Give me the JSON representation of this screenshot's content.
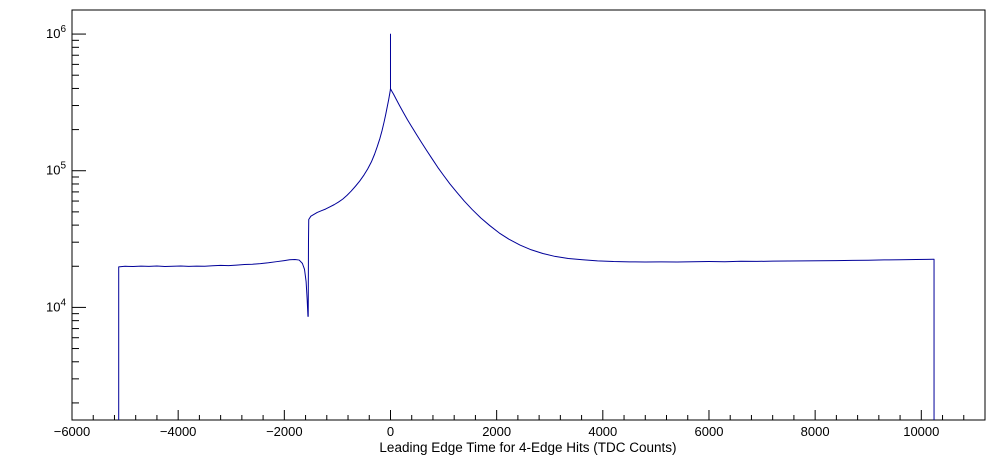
{
  "chart_data": {
    "type": "line",
    "title": "",
    "xlabel": "Leading Edge Time for 4-Edge Hits (TDC Counts)",
    "ylabel": "",
    "y_scale": "log",
    "grid": false,
    "legend": "none",
    "xlim": [
      -6000,
      11200
    ],
    "ylim": [
      1500,
      1500000
    ],
    "x_minor_step": 400,
    "line_color": "#000099",
    "frame_color": "#000000",
    "background_color": "#ffffff",
    "x_ticks": [
      {
        "value": -6000,
        "label": "−6000"
      },
      {
        "value": -4000,
        "label": "−4000"
      },
      {
        "value": -2000,
        "label": "−2000"
      },
      {
        "value": 0,
        "label": "0"
      },
      {
        "value": 2000,
        "label": "2000"
      },
      {
        "value": 4000,
        "label": "4000"
      },
      {
        "value": 6000,
        "label": "6000"
      },
      {
        "value": 8000,
        "label": "8000"
      },
      {
        "value": 10000,
        "label": "10000"
      }
    ],
    "y_ticks": [
      {
        "value": 10000,
        "label_base": "10",
        "label_exp": "4"
      },
      {
        "value": 100000,
        "label_base": "10",
        "label_exp": "5"
      },
      {
        "value": 1000000,
        "label_base": "10",
        "label_exp": "6"
      }
    ],
    "series": [
      {
        "name": "leading-edge-time-histogram",
        "points": [
          [
            -5120,
            1500
          ],
          [
            -5120,
            19800
          ],
          [
            -5000,
            20000
          ],
          [
            -4850,
            19900
          ],
          [
            -4700,
            20050
          ],
          [
            -4550,
            19950
          ],
          [
            -4400,
            20100
          ],
          [
            -4250,
            19900
          ],
          [
            -4100,
            20000
          ],
          [
            -3950,
            20100
          ],
          [
            -3800,
            19950
          ],
          [
            -3650,
            20050
          ],
          [
            -3500,
            20000
          ],
          [
            -3350,
            20150
          ],
          [
            -3200,
            20300
          ],
          [
            -3050,
            20200
          ],
          [
            -2900,
            20400
          ],
          [
            -2750,
            20600
          ],
          [
            -2600,
            20700
          ],
          [
            -2450,
            20900
          ],
          [
            -2300,
            21200
          ],
          [
            -2150,
            21600
          ],
          [
            -2000,
            22000
          ],
          [
            -1900,
            22300
          ],
          [
            -1800,
            22400
          ],
          [
            -1720,
            22200
          ],
          [
            -1660,
            21000
          ],
          [
            -1620,
            19000
          ],
          [
            -1590,
            15500
          ],
          [
            -1570,
            11500
          ],
          [
            -1555,
            8600
          ],
          [
            -1550,
            8600
          ],
          [
            -1545,
            30000
          ],
          [
            -1540,
            44000
          ],
          [
            -1500,
            46500
          ],
          [
            -1440,
            48000
          ],
          [
            -1380,
            49500
          ],
          [
            -1300,
            51000
          ],
          [
            -1220,
            52500
          ],
          [
            -1140,
            54500
          ],
          [
            -1060,
            56500
          ],
          [
            -980,
            59000
          ],
          [
            -900,
            62000
          ],
          [
            -820,
            66000
          ],
          [
            -740,
            71000
          ],
          [
            -660,
            77000
          ],
          [
            -580,
            84000
          ],
          [
            -500,
            93000
          ],
          [
            -430,
            103000
          ],
          [
            -360,
            116000
          ],
          [
            -300,
            132000
          ],
          [
            -250,
            150000
          ],
          [
            -200,
            172000
          ],
          [
            -160,
            196000
          ],
          [
            -120,
            228000
          ],
          [
            -90,
            258000
          ],
          [
            -60,
            295000
          ],
          [
            -35,
            330000
          ],
          [
            -15,
            365000
          ],
          [
            -5,
            385000
          ],
          [
            0,
            400000
          ],
          [
            0,
            1000000
          ],
          [
            0,
            398000
          ],
          [
            20,
            385000
          ],
          [
            60,
            362000
          ],
          [
            110,
            332000
          ],
          [
            170,
            300000
          ],
          [
            240,
            268000
          ],
          [
            320,
            236000
          ],
          [
            400,
            210000
          ],
          [
            490,
            184000
          ],
          [
            580,
            162000
          ],
          [
            680,
            141000
          ],
          [
            780,
            123000
          ],
          [
            890,
            106000
          ],
          [
            1000,
            92500
          ],
          [
            1120,
            80000
          ],
          [
            1250,
            69500
          ],
          [
            1390,
            60000
          ],
          [
            1540,
            52000
          ],
          [
            1700,
            45200
          ],
          [
            1870,
            39700
          ],
          [
            2050,
            35000
          ],
          [
            2240,
            31400
          ],
          [
            2440,
            28600
          ],
          [
            2650,
            26400
          ],
          [
            2870,
            24800
          ],
          [
            3100,
            23600
          ],
          [
            3350,
            22800
          ],
          [
            3620,
            22300
          ],
          [
            3900,
            21900
          ],
          [
            4200,
            21650
          ],
          [
            4500,
            21550
          ],
          [
            4800,
            21500
          ],
          [
            5100,
            21550
          ],
          [
            5400,
            21500
          ],
          [
            5700,
            21600
          ],
          [
            6000,
            21650
          ],
          [
            6300,
            21600
          ],
          [
            6600,
            21750
          ],
          [
            6900,
            21700
          ],
          [
            7200,
            21800
          ],
          [
            7500,
            21850
          ],
          [
            7800,
            21900
          ],
          [
            8100,
            21950
          ],
          [
            8400,
            22000
          ],
          [
            8700,
            22100
          ],
          [
            9000,
            22150
          ],
          [
            9300,
            22250
          ],
          [
            9600,
            22300
          ],
          [
            9900,
            22400
          ],
          [
            10100,
            22450
          ],
          [
            10230,
            22500
          ],
          [
            10240,
            22500
          ],
          [
            10240,
            1500
          ]
        ]
      }
    ]
  }
}
